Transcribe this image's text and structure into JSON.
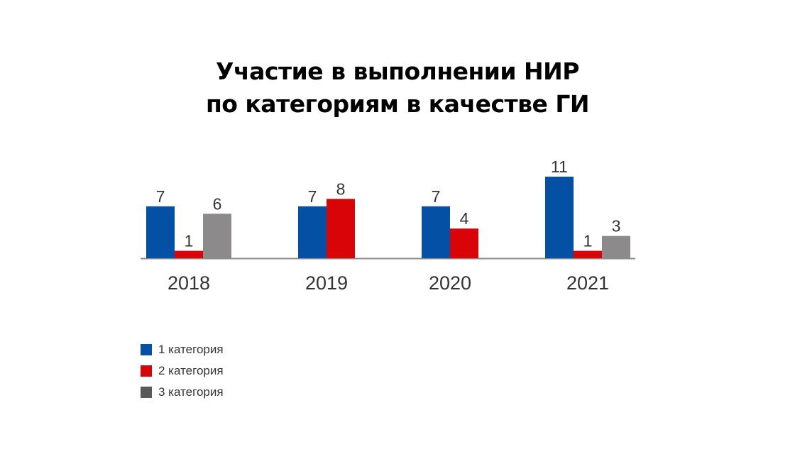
{
  "chart_data": {
    "type": "bar",
    "title_lines": [
      "Участие в выполнении НИР",
      "по категориям в качестве ГИ"
    ],
    "categories": [
      "2018",
      "2019",
      "2020",
      "2021"
    ],
    "series": [
      {
        "name": "1 категория",
        "color": "#0350a4",
        "values": [
          7,
          7,
          7,
          11
        ]
      },
      {
        "name": "2 категория",
        "color": "#d90408",
        "values": [
          1,
          8,
          4,
          1
        ]
      },
      {
        "name": "3 категория",
        "color": "#8c8a8b",
        "values": [
          6,
          null,
          null,
          3
        ]
      }
    ],
    "legend_colors": [
      "#0350a4",
      "#d90408",
      "#5a5a5a"
    ],
    "ylim": [
      0,
      11
    ],
    "grid": false,
    "legend_position": "bottom-left"
  }
}
